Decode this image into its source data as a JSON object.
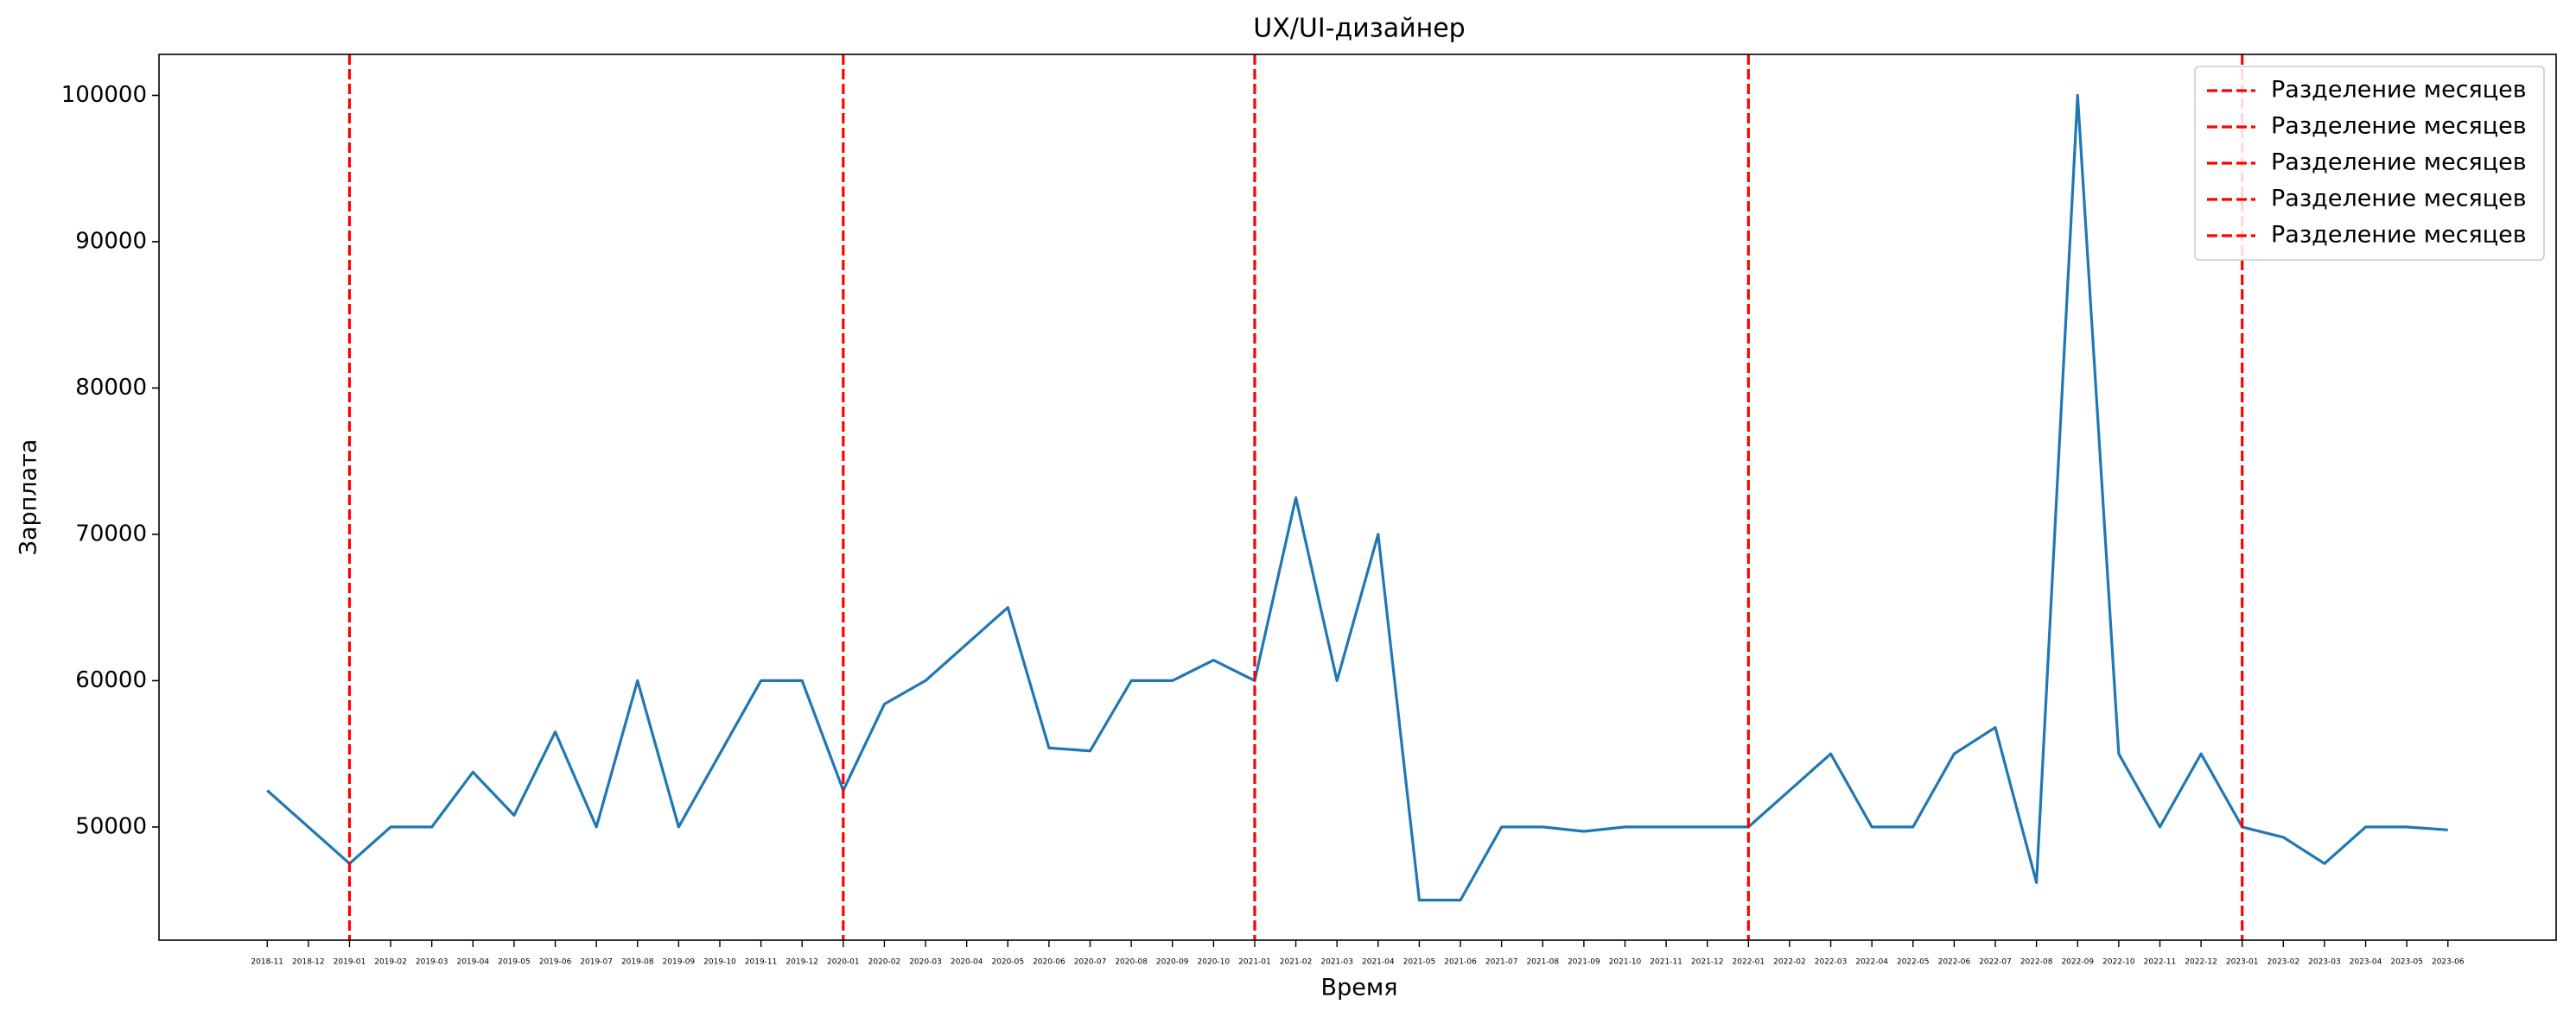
{
  "chart_data": {
    "type": "line",
    "title": "UX/UI-дизайнер",
    "xlabel": "Время",
    "ylabel": "Зарплата",
    "categories": [
      "2018-11",
      "2018-12",
      "2019-01",
      "2019-02",
      "2019-03",
      "2019-04",
      "2019-05",
      "2019-06",
      "2019-07",
      "2019-08",
      "2019-09",
      "2019-10",
      "2019-11",
      "2019-12",
      "2020-01",
      "2020-02",
      "2020-03",
      "2020-04",
      "2020-05",
      "2020-06",
      "2020-07",
      "2020-08",
      "2020-09",
      "2020-10",
      "2021-01",
      "2021-02",
      "2021-03",
      "2021-04",
      "2021-05",
      "2021-06",
      "2021-07",
      "2021-08",
      "2021-09",
      "2021-10",
      "2021-11",
      "2021-12",
      "2022-01",
      "2022-02",
      "2022-03",
      "2022-04",
      "2022-05",
      "2022-06",
      "2022-07",
      "2022-08",
      "2022-09",
      "2022-10",
      "2022-11",
      "2022-12",
      "2023-01",
      "2023-02",
      "2023-03",
      "2023-04",
      "2023-05",
      "2023-06"
    ],
    "series": [
      {
        "color": "#1f77b4",
        "values": [
          52500,
          50000,
          47500,
          50000,
          50000,
          53750,
          50800,
          56500,
          50000,
          60000,
          50000,
          55000,
          60000,
          60000,
          52500,
          58400,
          60000,
          62500,
          65000,
          55400,
          55200,
          60000,
          60000,
          61400,
          60000,
          72500,
          60000,
          70000,
          45000,
          45000,
          50000,
          50000,
          49700,
          50000,
          50000,
          50000,
          50000,
          52500,
          55000,
          50000,
          50000,
          55000,
          56800,
          46200,
          100000,
          55000,
          50000,
          55000,
          50000,
          49300,
          47500,
          50000,
          50000,
          49800
        ]
      }
    ],
    "vlines": [
      {
        "x": "2019-01",
        "label": "Разделение месяцев",
        "color": "#ff0000"
      },
      {
        "x": "2020-01",
        "label": "Разделение месяцев",
        "color": "#ff0000"
      },
      {
        "x": "2021-01",
        "label": "Разделение месяцев",
        "color": "#ff0000"
      },
      {
        "x": "2022-01",
        "label": "Разделение месяцев",
        "color": "#ff0000"
      },
      {
        "x": "2023-01",
        "label": "Разделение месяцев",
        "color": "#ff0000"
      }
    ],
    "ylim": [
      42265,
      102800
    ],
    "yticks": [
      50000,
      60000,
      70000,
      80000,
      90000,
      100000
    ],
    "legend": "upper right"
  }
}
